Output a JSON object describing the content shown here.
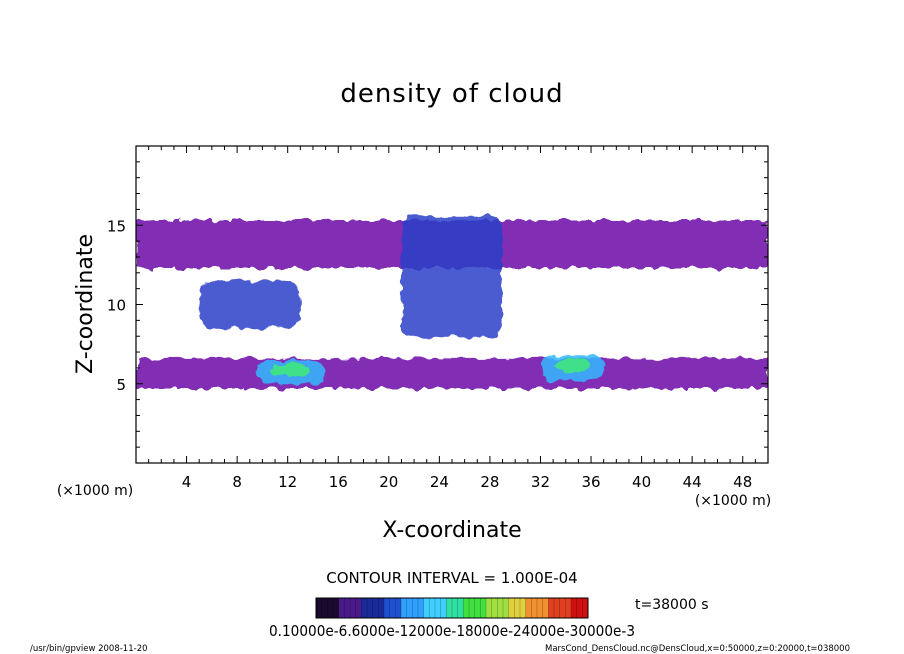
{
  "chart_data": {
    "type": "heatmap",
    "title": "density of cloud",
    "xlabel": "X-coordinate",
    "ylabel": "Z-coordinate",
    "x_unit_left": "(×1000 m)",
    "x_unit_right": "(×1000 m)",
    "xlim": [
      0,
      50
    ],
    "ylim": [
      0,
      20
    ],
    "x_ticks": [
      "4",
      "8",
      "12",
      "16",
      "20",
      "24",
      "28",
      "32",
      "36",
      "40",
      "44",
      "48"
    ],
    "y_ticks": [
      "5",
      "10",
      "15"
    ],
    "contour_interval_label": "CONTOUR INTERVAL = 1.000E-04",
    "time_label": "t=38000 s",
    "colorbar_label_text": "0.10000e-6.6000e-12000e-18000e-24000e-30000e-3",
    "colorbar_range": [
      0.0,
      0.0003
    ],
    "colorbar_colors": [
      "#1a0a2e",
      "#4a1a8a",
      "#1a2a9a",
      "#2050d0",
      "#30a0ff",
      "#40d0ff",
      "#30e0a0",
      "#40e040",
      "#a0e040",
      "#e0d040",
      "#f09030",
      "#e04020",
      "#d01010"
    ],
    "cloud_regions": [
      {
        "x": [
          0,
          50
        ],
        "z": [
          12.3,
          15.3
        ],
        "level": "low",
        "desc": "upper layer"
      },
      {
        "x": [
          5,
          13
        ],
        "z": [
          8.5,
          11.5
        ],
        "level": "medium"
      },
      {
        "x": [
          21,
          29
        ],
        "z": [
          8,
          15.6
        ],
        "level": "medium"
      },
      {
        "x": [
          0,
          50
        ],
        "z": [
          4.7,
          6.6
        ],
        "level": "low",
        "desc": "lower layer"
      },
      {
        "x": [
          9.5,
          15
        ],
        "z": [
          5,
          6.5
        ],
        "level": "high"
      },
      {
        "x": [
          32,
          37
        ],
        "z": [
          5.2,
          6.8
        ],
        "level": "high"
      }
    ],
    "footer_left": "/usr/bin/gpview  2008-11-20",
    "footer_right": "MarsCond_DensCloud.nc@DensCloud,x=0:50000,z=0:20000,t=038000"
  }
}
